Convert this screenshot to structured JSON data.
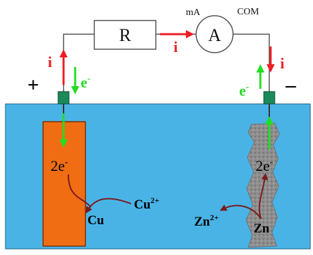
{
  "circuit": {
    "resistor_label": "R",
    "ammeter_label": "A",
    "ammeter_unit": "mA",
    "com_label": "COM",
    "current_label": "i",
    "electron_label": "e",
    "electron_charge": "-"
  },
  "electrodes": {
    "left": {
      "polarity": "+",
      "electron_count_label": "2e",
      "electron_charge": "-",
      "ion_label": "Cu",
      "ion_charge": "2+",
      "metal_label": "Cu",
      "color": "#f06d14"
    },
    "right": {
      "polarity": "–",
      "electron_count_label": "2e",
      "electron_charge": "-",
      "ion_label": "Zn",
      "ion_charge": "2+",
      "metal_label": "Zn",
      "color": "#8a8a8a"
    }
  },
  "colors": {
    "electrolyte": "#49b3e6",
    "current_arrow": "#ee1c24",
    "electron_arrow": "#22dd22",
    "reaction_arrow": "#7a1c1c",
    "connector": "#1a8a5a",
    "wire": "#555555"
  }
}
